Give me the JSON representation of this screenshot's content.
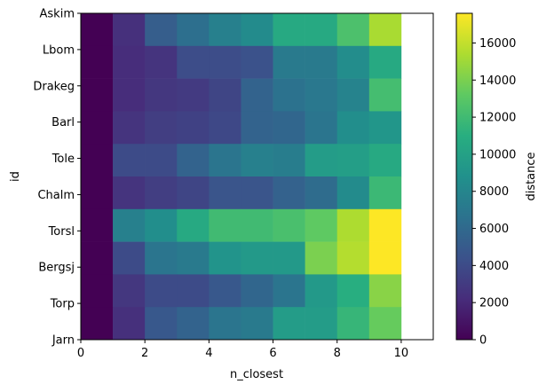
{
  "chart_data": {
    "type": "heatmap",
    "title": "",
    "xlabel": "n_closest",
    "ylabel": "id",
    "colorbar_label": "distance",
    "colormap": "viridis",
    "xlim": [
      0,
      11
    ],
    "clim": [
      0,
      17600
    ],
    "x_ticks": [
      0,
      2,
      4,
      6,
      8,
      10
    ],
    "colorbar_ticks": [
      0,
      2000,
      4000,
      6000,
      8000,
      10000,
      12000,
      14000,
      16000
    ],
    "columns": [
      0,
      1,
      2,
      3,
      4,
      5,
      6,
      7,
      8,
      9
    ],
    "rows": [
      "Askim",
      "Lbom",
      "Drakeg",
      "Barl",
      "Tole",
      "Chalm",
      "Torsl",
      "Bergsj",
      "Torp",
      "Jarn"
    ],
    "values": [
      [
        0,
        2400,
        5200,
        6400,
        7600,
        8400,
        10600,
        10600,
        12500,
        15300
      ],
      [
        0,
        2200,
        2600,
        4100,
        4100,
        4400,
        7200,
        7200,
        8500,
        10600
      ],
      [
        0,
        2200,
        2800,
        3000,
        3600,
        5600,
        6600,
        7000,
        7800,
        12200
      ],
      [
        0,
        2600,
        3200,
        3400,
        3800,
        5600,
        5800,
        6800,
        8600,
        9200
      ],
      [
        0,
        4000,
        4000,
        5600,
        6800,
        7600,
        7400,
        9600,
        9800,
        10600
      ],
      [
        0,
        2600,
        3200,
        3600,
        4600,
        4600,
        5500,
        6200,
        8400,
        11800
      ],
      [
        0,
        7600,
        8600,
        10600,
        12000,
        12000,
        12400,
        13200,
        15400,
        17600
      ],
      [
        0,
        4000,
        6800,
        7200,
        9000,
        9400,
        9400,
        14000,
        15600,
        17600
      ],
      [
        0,
        2800,
        4000,
        4000,
        4800,
        5800,
        6800,
        9400,
        11000,
        14400
      ],
      [
        0,
        2400,
        4800,
        5600,
        6800,
        7200,
        9600,
        9600,
        11600,
        13400
      ]
    ]
  }
}
